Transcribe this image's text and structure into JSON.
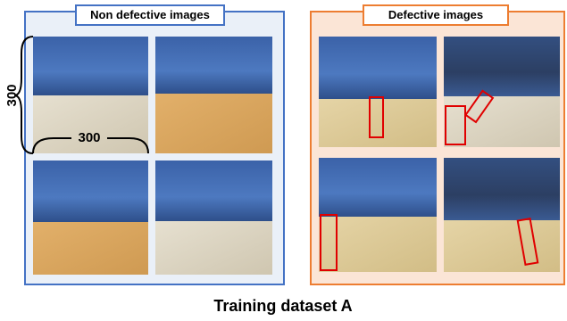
{
  "left_panel": {
    "title": "Non defective images",
    "height_label": "300",
    "width_label": "300"
  },
  "right_panel": {
    "title": "Defective images"
  },
  "caption": "Training dataset A"
}
